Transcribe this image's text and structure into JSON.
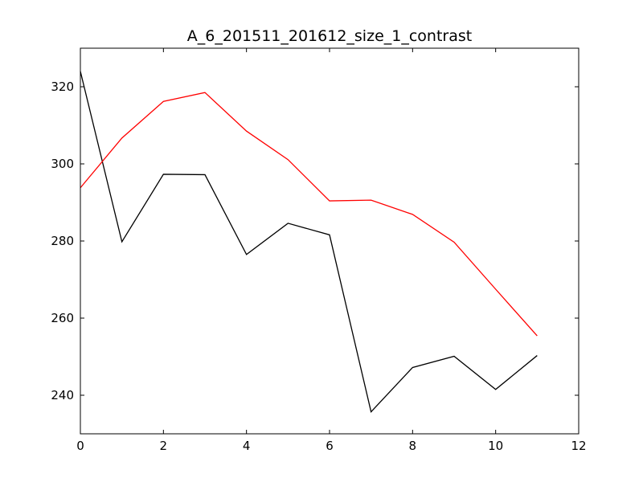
{
  "chart_data": {
    "type": "line",
    "title": "A_6_201511_201612_size_1_contrast",
    "xlabel": "",
    "ylabel": "",
    "xlim": [
      0,
      12
    ],
    "ylim": [
      230,
      330
    ],
    "x_ticks": [
      0,
      2,
      4,
      6,
      8,
      10,
      12
    ],
    "x_tick_labels": [
      "0",
      "2",
      "4",
      "6",
      "8",
      "10",
      "12"
    ],
    "y_ticks": [
      240,
      260,
      280,
      300,
      320
    ],
    "y_tick_labels": [
      "240",
      "260",
      "280",
      "300",
      "320"
    ],
    "grid": false,
    "legend": "none",
    "x": [
      0,
      1,
      2,
      3,
      4,
      5,
      6,
      7,
      8,
      9,
      10,
      11
    ],
    "series": [
      {
        "color": "#000000",
        "values": [
          324.0,
          279.8,
          297.3,
          297.2,
          276.5,
          284.6,
          281.6,
          235.7,
          247.2,
          250.1,
          241.5,
          250.3
        ]
      },
      {
        "color": "#ff0000",
        "values": [
          293.8,
          306.7,
          316.2,
          318.5,
          308.5,
          301.1,
          290.4,
          290.6,
          286.9,
          279.7,
          267.5,
          255.4
        ]
      }
    ]
  }
}
